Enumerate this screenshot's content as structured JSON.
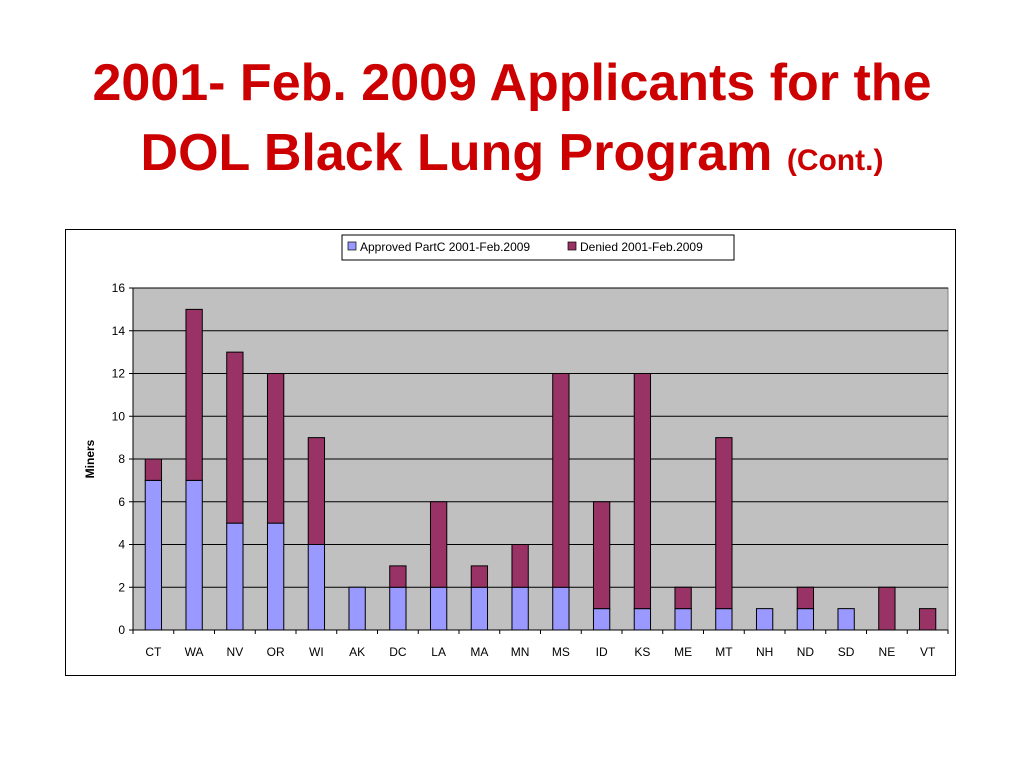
{
  "slide": {
    "title_line1": "2001- Feb. 2009 Applicants for the",
    "title_line2": "DOL Black Lung Program",
    "title_suffix": "(Cont.)"
  },
  "colors": {
    "title": "#cc0000",
    "approved": "#9999ff",
    "denied": "#993366",
    "plot_background": "#c0c0c0",
    "gridline": "#000000"
  },
  "chart_data": {
    "type": "bar",
    "stacked": true,
    "title": "",
    "xlabel": "",
    "ylabel": "Miners",
    "ylim": [
      0,
      16
    ],
    "yticks": [
      0,
      2,
      4,
      6,
      8,
      10,
      12,
      14,
      16
    ],
    "grid": true,
    "legend_position": "top",
    "categories": [
      "CT",
      "WA",
      "NV",
      "OR",
      "WI",
      "AK",
      "DC",
      "LA",
      "MA",
      "MN",
      "MS",
      "ID",
      "KS",
      "ME",
      "MT",
      "NH",
      "ND",
      "SD",
      "NE",
      "VT"
    ],
    "series": [
      {
        "name": "Approved PartC 2001-Feb.2009",
        "color": "#9999ff",
        "values": [
          7,
          7,
          5,
          5,
          4,
          2,
          2,
          2,
          2,
          2,
          2,
          1,
          1,
          1,
          1,
          1,
          1,
          1,
          0,
          0
        ]
      },
      {
        "name": "Denied 2001-Feb.2009",
        "color": "#993366",
        "values": [
          1,
          8,
          8,
          7,
          5,
          0,
          1,
          4,
          1,
          2,
          10,
          5,
          11,
          1,
          8,
          0,
          1,
          0,
          2,
          1
        ]
      }
    ]
  }
}
